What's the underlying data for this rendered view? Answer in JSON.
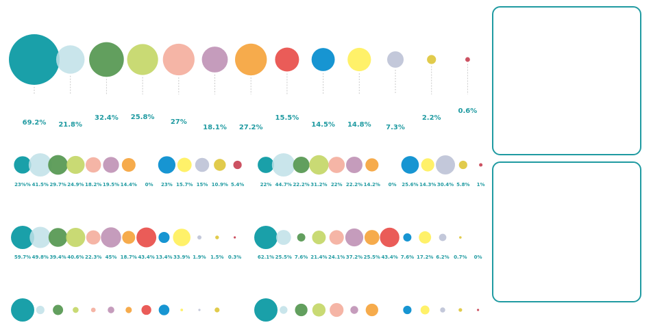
{
  "colors": [
    "#0e9ba4",
    "#bfe1e8",
    "#5a9a55",
    "#c6d86d",
    "#f4b1a1",
    "#c297b8",
    "#f5a742",
    "#e9534f",
    "#0b8fd0",
    "#fff061",
    "#c0c5d8",
    "#dfc842",
    "#c9495a"
  ],
  "label_color": "#1f9aa1",
  "stem_color": "#c8c8c8",
  "panels": [
    {
      "label": "Right panel top",
      "content": ""
    },
    {
      "label": "Right panel bottom",
      "content": ""
    }
  ],
  "chart_data": [
    {
      "type": "bubble",
      "name": "main",
      "values": [
        69.2,
        21.8,
        32.4,
        25.8,
        27,
        18.1,
        27.2,
        15.5,
        14.5,
        14.8,
        7.3,
        2.2,
        0.6
      ],
      "labels": [
        "69.2%",
        "21.8%",
        "32.4%",
        "25.8%",
        "27%",
        "18.1%",
        "27.2%",
        "15.5%",
        "14.5%",
        "14.8%",
        "7.3%",
        "2.2%",
        "0.6%"
      ]
    },
    {
      "type": "bubble",
      "name": "row1-left",
      "values": [
        23,
        41.5,
        29.7,
        24.9,
        18.2,
        19.5,
        14.4,
        0,
        23,
        15.7,
        15,
        10.9,
        5.4
      ],
      "labels": [
        "23%%",
        "41.5%",
        "29.7%",
        "24.9%",
        "18.2%",
        "19.5%",
        "14.4%",
        "0%",
        "23%",
        "15.7%",
        "15%",
        "10.9%",
        "5.4%"
      ]
    },
    {
      "type": "bubble",
      "name": "row1-right",
      "values": [
        22,
        44.7,
        22.2,
        31.2,
        22,
        22.2,
        14.2,
        0,
        25.6,
        14.3,
        30.4,
        5.8,
        1
      ],
      "labels": [
        "22%",
        "44.7%",
        "22.2%",
        "31.2%",
        "22%",
        "22.2%",
        "14.2%",
        "0%",
        "25.6%",
        "14.3%",
        "30.4%",
        "5.8%",
        "1%"
      ]
    },
    {
      "type": "bubble",
      "name": "row2-left",
      "values": [
        59.7,
        49.8,
        39.4,
        40.6,
        22.3,
        45,
        18.7,
        43.4,
        13.4,
        33.9,
        1.9,
        1.5,
        0.3
      ],
      "labels": [
        "59.7%",
        "49.8%",
        "39.4%",
        "40.6%",
        "22.3%",
        "45%",
        "18.7%",
        "43.4%",
        "13.4%",
        "33.9%",
        "1.9%",
        "1.5%",
        "0.3%"
      ]
    },
    {
      "type": "bubble",
      "name": "row2-right",
      "values": [
        62.1,
        25.5,
        7.6,
        21.4,
        24.1,
        37.2,
        25.5,
        43.4,
        7.6,
        17.2,
        6.2,
        0.7,
        0
      ],
      "labels": [
        "62.1%",
        "25.5%",
        "7.6%",
        "21.4%",
        "24.1%",
        "37.2%",
        "25.5%",
        "43.4%",
        "7.6%",
        "17.2%",
        "6.2%",
        "0.7%",
        "0%"
      ]
    },
    {
      "type": "bubble",
      "name": "row3-left",
      "values": [
        62,
        8,
        12,
        4,
        2.5,
        5,
        4.5,
        11,
        13,
        0.8,
        0.5,
        2.8,
        0
      ],
      "labels": []
    },
    {
      "type": "bubble",
      "name": "row3-right",
      "values": [
        62,
        7,
        18,
        20,
        22,
        7,
        18,
        0,
        8,
        9,
        3,
        1.5,
        0.5
      ],
      "labels": []
    }
  ]
}
